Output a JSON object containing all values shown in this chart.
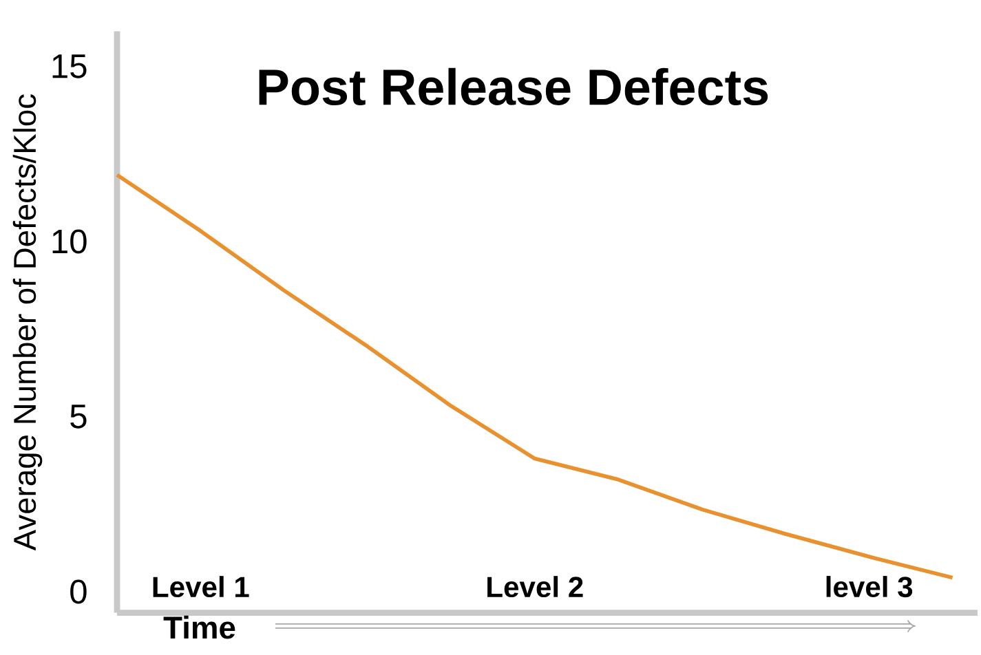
{
  "chart_data": {
    "type": "line",
    "title": "Post Release Defects",
    "xlabel": "Time",
    "ylabel": "Average Number of Defects/Kloc",
    "categories": [
      null,
      "Level 1",
      null,
      null,
      null,
      "Level 2",
      null,
      null,
      null,
      "level 3",
      null
    ],
    "values": [
      11.9,
      10.3,
      8.6,
      7.0,
      5.3,
      3.8,
      3.2,
      2.35,
      1.65,
      1.0,
      0.4
    ],
    "color": "#e8912e",
    "ylim": [
      -0.6,
      16
    ],
    "yticks": [
      0,
      5,
      10,
      15
    ]
  }
}
